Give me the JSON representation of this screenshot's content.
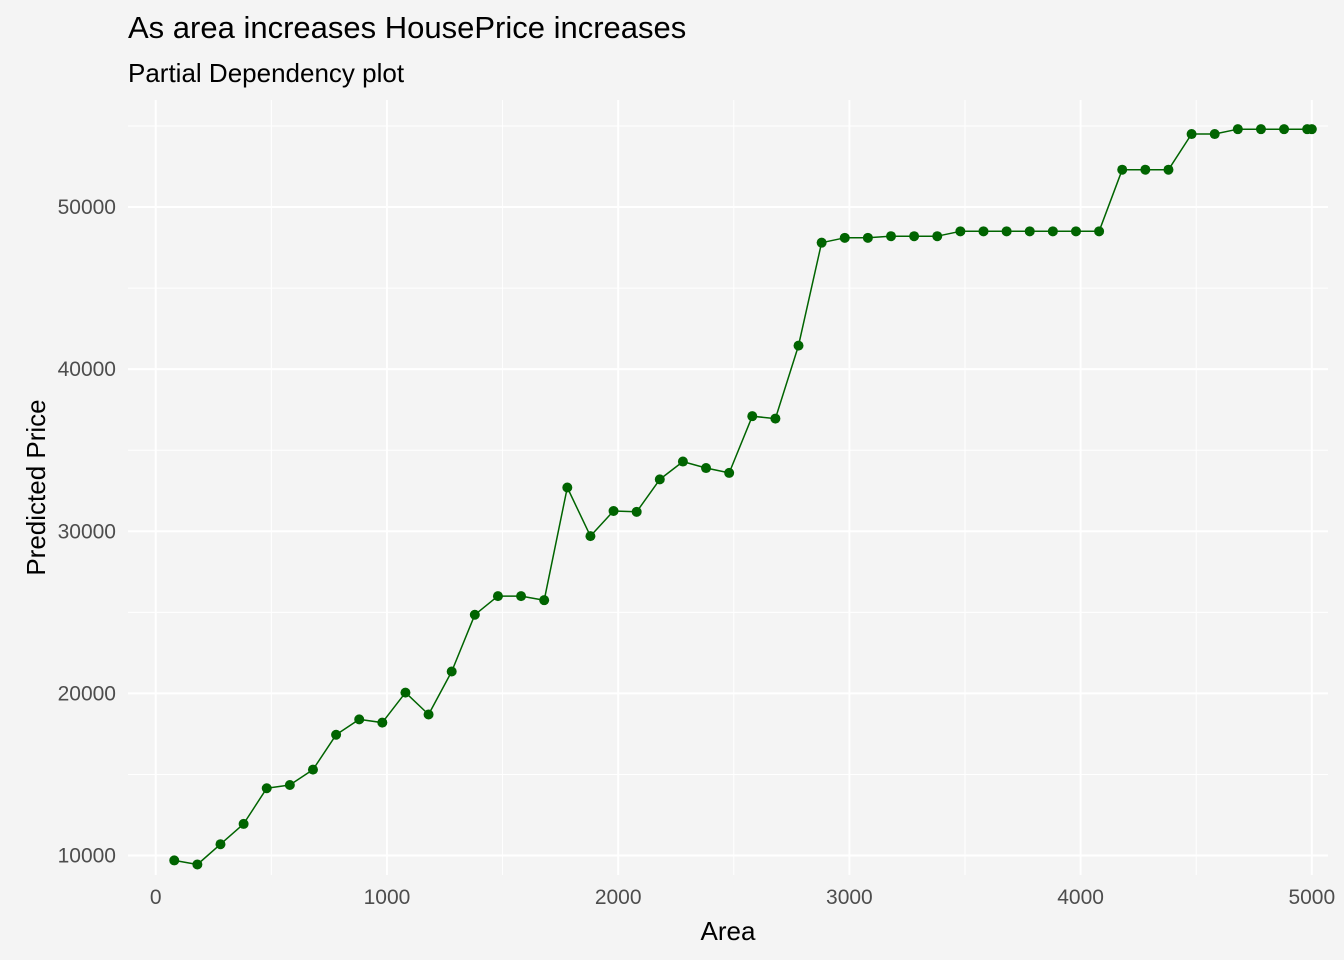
{
  "chart_data": {
    "type": "line",
    "title": "As area increases HousePrice increases",
    "subtitle": "Partial Dependency plot",
    "xlabel": "Area",
    "ylabel": "Predicted Price",
    "xlim": [
      -120,
      5070
    ],
    "ylim": [
      8800,
      56600
    ],
    "x_ticks": [
      0,
      1000,
      2000,
      3000,
      4000,
      5000
    ],
    "x_tick_labels": [
      "0",
      "1000",
      "2000",
      "3000",
      "4000",
      "5000"
    ],
    "y_ticks": [
      10000,
      20000,
      30000,
      40000,
      50000
    ],
    "y_tick_labels": [
      "10000",
      "20000",
      "30000",
      "40000",
      "50000"
    ],
    "grid": true,
    "colors": {
      "series": "#006400",
      "background": "#f4f4f4",
      "grid": "#ffffff"
    },
    "series": [
      {
        "x": [
          80,
          180,
          280,
          380,
          480,
          580,
          680,
          780,
          880,
          980,
          1080,
          1180,
          1280,
          1380,
          1480,
          1580,
          1680,
          1780,
          1880,
          1980,
          2080,
          2180,
          2280,
          2380,
          2480,
          2580,
          2680,
          2780,
          2880,
          2980,
          3080,
          3180,
          3280,
          3380,
          3480,
          3580,
          3680,
          3780,
          3880,
          3980,
          4080,
          4180,
          4280,
          4380,
          4480,
          4580,
          4680,
          4780,
          4880,
          4980,
          5000
        ],
        "values": [
          9700,
          9450,
          10700,
          11950,
          14150,
          14350,
          15300,
          17450,
          18400,
          18200,
          20050,
          18700,
          21350,
          24850,
          26000,
          26000,
          25750,
          32700,
          29700,
          31250,
          31200,
          33200,
          34300,
          33900,
          33600,
          37100,
          36950,
          41450,
          47800,
          48100,
          48100,
          48200,
          48200,
          48200,
          48500,
          48500,
          48500,
          48500,
          48500,
          48500,
          48500,
          52300,
          52300,
          52300,
          54500,
          54500,
          54800,
          54800,
          54800,
          54800,
          54800
        ]
      }
    ]
  }
}
